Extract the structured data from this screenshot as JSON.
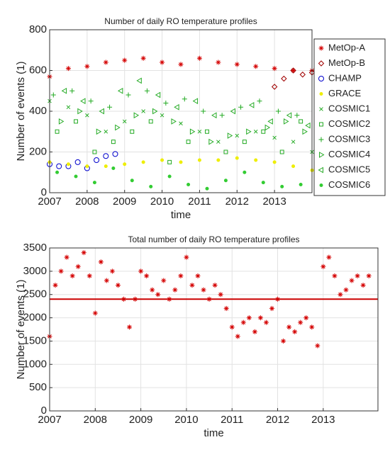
{
  "chart_data": [
    {
      "type": "scatter",
      "title": "Number of daily RO temperature profiles",
      "xlabel": "time",
      "ylabel": "Number of events (1)",
      "xlim": [
        2007,
        2014
      ],
      "xticks": [
        2007,
        2008,
        2009,
        2010,
        2011,
        2012,
        2013
      ],
      "ylim": [
        0,
        800
      ],
      "yticks": [
        0,
        200,
        400,
        600,
        800
      ],
      "grid": true,
      "legend": "east",
      "series": [
        {
          "name": "MetOp-A",
          "color": "#d40000",
          "marker": "*",
          "x": [
            2007,
            2007.5,
            2008,
            2008.5,
            2009,
            2009.5,
            2010,
            2010.5,
            2011,
            2011.5,
            2012,
            2012.5,
            2013,
            2013.5,
            2014
          ],
          "values": [
            570,
            610,
            620,
            640,
            650,
            660,
            640,
            630,
            660,
            640,
            630,
            620,
            610,
            600,
            600
          ]
        },
        {
          "name": "MetOp-B",
          "color": "#a00000",
          "marker": "d",
          "x": [
            2013,
            2013.25,
            2013.5,
            2013.75,
            2014
          ],
          "values": [
            520,
            560,
            600,
            580,
            590
          ]
        },
        {
          "name": "CHAMP",
          "color": "#0000cc",
          "marker": "o",
          "x": [
            2007,
            2007.25,
            2007.5,
            2007.75,
            2008,
            2008.25,
            2008.5,
            2008.75
          ],
          "values": [
            140,
            130,
            130,
            150,
            120,
            160,
            180,
            190
          ]
        },
        {
          "name": "GRACE",
          "color": "#eeee00",
          "marker": ".",
          "x": [
            2007,
            2007.5,
            2008,
            2008.5,
            2009,
            2009.5,
            2010,
            2010.5,
            2011,
            2011.5,
            2012,
            2012.5,
            2013,
            2013.5,
            2014
          ],
          "values": [
            150,
            140,
            130,
            130,
            140,
            150,
            160,
            150,
            160,
            160,
            170,
            160,
            150,
            130,
            110
          ]
        },
        {
          "name": "COSMIC1",
          "color": "#22aa22",
          "marker": "x",
          "x": [
            2007,
            2007.5,
            2008,
            2008.5,
            2009,
            2009.5,
            2010,
            2010.5,
            2011,
            2011.5,
            2012,
            2012.5,
            2013,
            2013.5,
            2014
          ],
          "values": [
            450,
            420,
            380,
            300,
            350,
            400,
            380,
            340,
            300,
            250,
            280,
            300,
            270,
            250,
            200
          ]
        },
        {
          "name": "COSMIC2",
          "color": "#22aa22",
          "marker": "s",
          "x": [
            2007.2,
            2007.7,
            2008.2,
            2008.7,
            2009.2,
            2009.7,
            2010.2,
            2010.7,
            2011.2,
            2011.7,
            2012.2,
            2012.7,
            2013.2,
            2013.7
          ],
          "values": [
            300,
            350,
            200,
            250,
            300,
            350,
            150,
            250,
            300,
            200,
            250,
            300,
            200,
            350
          ]
        },
        {
          "name": "COSMIC3",
          "color": "#22aa22",
          "marker": "+",
          "x": [
            2007.1,
            2007.6,
            2008.1,
            2008.6,
            2009.1,
            2009.6,
            2010.1,
            2010.6,
            2011.1,
            2011.6,
            2012.1,
            2012.6,
            2013.1,
            2013.6
          ],
          "values": [
            480,
            500,
            450,
            420,
            480,
            500,
            440,
            460,
            400,
            380,
            420,
            450,
            400,
            380
          ]
        },
        {
          "name": "COSMIC4",
          "color": "#22aa22",
          "marker": ">",
          "x": [
            2007.3,
            2007.8,
            2008.3,
            2008.8,
            2009.3,
            2009.8,
            2010.3,
            2010.8,
            2011.3,
            2011.8,
            2012.3,
            2012.8,
            2013.3,
            2013.8
          ],
          "values": [
            350,
            400,
            300,
            320,
            380,
            400,
            350,
            300,
            250,
            280,
            300,
            320,
            350,
            300
          ]
        },
        {
          "name": "COSMIC5",
          "color": "#22aa22",
          "marker": "<",
          "x": [
            2007.4,
            2007.9,
            2008.4,
            2008.9,
            2009.4,
            2009.9,
            2010.4,
            2010.9,
            2011.4,
            2011.9,
            2012.4,
            2012.9,
            2013.4,
            2013.9
          ],
          "values": [
            500,
            450,
            400,
            500,
            550,
            480,
            420,
            450,
            380,
            400,
            430,
            350,
            380,
            330
          ]
        },
        {
          "name": "COSMIC6",
          "color": "#33cc33",
          "marker": ".",
          "x": [
            2007.2,
            2007.7,
            2008.2,
            2008.7,
            2009.2,
            2009.7,
            2010.2,
            2010.7,
            2011.2,
            2011.7,
            2012.2,
            2012.7,
            2013.2,
            2013.7
          ],
          "values": [
            100,
            80,
            50,
            120,
            60,
            30,
            80,
            40,
            20,
            60,
            100,
            50,
            30,
            40
          ]
        }
      ]
    },
    {
      "type": "scatter",
      "title": "Total number of daily RO temperature profiles",
      "xlabel": "time",
      "ylabel": "Number of events (1)",
      "xlim": [
        2007,
        2014.2
      ],
      "xticks": [
        2007,
        2008,
        2009,
        2010,
        2011,
        2012,
        2013
      ],
      "ylim": [
        0,
        3500
      ],
      "yticks": [
        0,
        500,
        1000,
        1500,
        2000,
        2500,
        3000,
        3500
      ],
      "grid": true,
      "color": "#d40000",
      "marker": "*",
      "hline": {
        "value": 2400,
        "color": "#cc0000"
      },
      "x": [
        2007,
        2007.125,
        2007.25,
        2007.375,
        2007.5,
        2007.625,
        2007.75,
        2007.875,
        2008,
        2008.125,
        2008.25,
        2008.375,
        2008.5,
        2008.625,
        2008.75,
        2008.875,
        2009,
        2009.125,
        2009.25,
        2009.375,
        2009.5,
        2009.625,
        2009.75,
        2009.875,
        2010,
        2010.125,
        2010.25,
        2010.375,
        2010.5,
        2010.625,
        2010.75,
        2010.875,
        2011,
        2011.125,
        2011.25,
        2011.375,
        2011.5,
        2011.625,
        2011.75,
        2011.875,
        2012,
        2012.125,
        2012.25,
        2012.375,
        2012.5,
        2012.625,
        2012.75,
        2012.875,
        2013,
        2013.125,
        2013.25,
        2013.375,
        2013.5,
        2013.625,
        2013.75,
        2013.875,
        2014
      ],
      "values": [
        1600,
        2700,
        3000,
        3300,
        2900,
        3100,
        3400,
        2900,
        2100,
        3200,
        2800,
        3000,
        2700,
        2400,
        1800,
        2400,
        3000,
        2900,
        2600,
        2500,
        2800,
        2400,
        2600,
        2900,
        3300,
        2700,
        2900,
        2600,
        2400,
        2700,
        2500,
        2200,
        1800,
        1600,
        1900,
        2000,
        1700,
        2000,
        1900,
        2200,
        2400,
        1500,
        1800,
        1700,
        1900,
        2000,
        1800,
        1400,
        3100,
        3300,
        2900,
        2500,
        2600,
        2800,
        2900,
        2700,
        2900
      ]
    }
  ]
}
